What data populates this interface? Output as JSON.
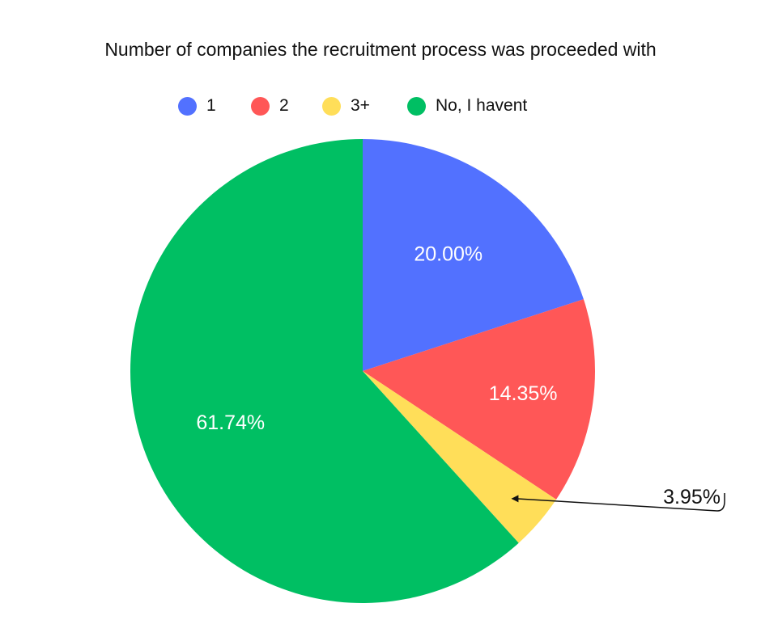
{
  "chart_data": {
    "type": "pie",
    "title": "Number of companies the recruitment process was proceeded with",
    "categories": [
      "1",
      "2",
      "3+",
      "No, I havent"
    ],
    "values": [
      20.0,
      14.35,
      3.95,
      61.74
    ],
    "labels": [
      "20.00%",
      "14.35%",
      "3.95%",
      "61.74%"
    ],
    "colors": [
      "#5271ff",
      "#ff5757",
      "#ffde59",
      "#00bf63"
    ],
    "legend_position": "top",
    "start_angle": "12 o'clock",
    "direction": "clockwise",
    "callout_slice": "3+"
  }
}
